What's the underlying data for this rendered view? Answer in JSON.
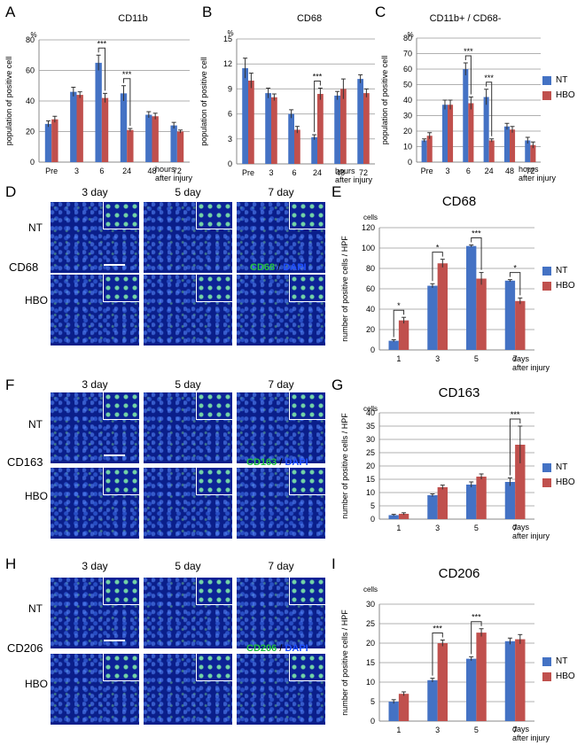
{
  "colors": {
    "nt": "#4472c4",
    "hbo": "#c0504d",
    "axis": "#888888",
    "grid": "#b0b0b0"
  },
  "legend": {
    "nt": "NT",
    "hbo": "HBO"
  },
  "panels": {
    "A": "A",
    "B": "B",
    "C": "C",
    "D": "D",
    "E": "E",
    "F": "F",
    "G": "G",
    "H": "H",
    "I": "I"
  },
  "micro": {
    "days": [
      "3 day",
      "5 day",
      "7 day"
    ],
    "nt": "NT",
    "hbo": "HBO",
    "dapi": "DAPI",
    "slash": "/",
    "D": {
      "marker": "CD68"
    },
    "F": {
      "marker": "CD163"
    },
    "H": {
      "marker": "CD206"
    }
  },
  "chart_data": [
    {
      "id": "A",
      "type": "bar",
      "title": "CD11b",
      "unit": "%",
      "ylabel": "population of positive cell",
      "xlabel": "hours after injury",
      "categories": [
        "Pre",
        "3",
        "6",
        "24",
        "48",
        "72"
      ],
      "ylim": [
        0,
        80
      ],
      "yticks": [
        0,
        20,
        40,
        60,
        80
      ],
      "grid": true,
      "series": [
        {
          "name": "NT",
          "values": [
            25,
            46,
            65,
            45,
            31,
            24
          ],
          "errors": [
            2,
            3,
            5,
            5,
            2,
            2
          ]
        },
        {
          "name": "HBO",
          "values": [
            28,
            44,
            42,
            21,
            30,
            20
          ],
          "errors": [
            2,
            2,
            3,
            1,
            2,
            1
          ]
        }
      ],
      "significance": [
        {
          "category": "6",
          "label": "***"
        },
        {
          "category": "24",
          "label": "***"
        }
      ]
    },
    {
      "id": "B",
      "type": "bar",
      "title": "CD68",
      "unit": "%",
      "ylabel": "population of positive cell",
      "xlabel": "hours after injury",
      "categories": [
        "Pre",
        "3",
        "6",
        "24",
        "48",
        "72"
      ],
      "ylim": [
        0,
        15
      ],
      "yticks": [
        0,
        3,
        6,
        9,
        12,
        15
      ],
      "grid": true,
      "series": [
        {
          "name": "NT",
          "values": [
            11.5,
            8.5,
            6,
            3.2,
            8.2,
            10.2
          ],
          "errors": [
            1.2,
            0.6,
            0.5,
            0.3,
            0.5,
            0.5
          ]
        },
        {
          "name": "HBO",
          "values": [
            10,
            8,
            4.1,
            8.4,
            9,
            8.5
          ],
          "errors": [
            0.9,
            0.4,
            0.4,
            0.7,
            1.2,
            0.5
          ]
        }
      ],
      "significance": [
        {
          "category": "24",
          "label": "***"
        }
      ]
    },
    {
      "id": "C",
      "type": "bar",
      "title": "CD11b+ / CD68-",
      "unit": "%",
      "ylabel": "population of positive cell",
      "xlabel": "hours after injury",
      "categories": [
        "Pre",
        "3",
        "6",
        "24",
        "48",
        "72"
      ],
      "ylim": [
        0,
        80
      ],
      "yticks": [
        0,
        10,
        20,
        30,
        40,
        50,
        60,
        70,
        80
      ],
      "grid": true,
      "series": [
        {
          "name": "NT",
          "values": [
            14,
            37,
            60,
            42,
            23,
            14
          ],
          "errors": [
            1,
            3,
            4,
            5,
            2,
            2
          ]
        },
        {
          "name": "HBO",
          "values": [
            17,
            37,
            38,
            14,
            21,
            11
          ],
          "errors": [
            2,
            3,
            4,
            1,
            2,
            2
          ]
        }
      ],
      "significance": [
        {
          "category": "6",
          "label": "***"
        },
        {
          "category": "24",
          "label": "***"
        }
      ],
      "legend_position": "right"
    },
    {
      "id": "E",
      "type": "bar",
      "title": "CD68",
      "unit": "cells",
      "ylabel": "number of positive cells / HPF",
      "xlabel": "days after injury",
      "categories": [
        "1",
        "3",
        "5",
        "7"
      ],
      "ylim": [
        0,
        120
      ],
      "yticks": [
        0,
        20,
        40,
        60,
        80,
        100,
        120
      ],
      "grid": true,
      "series": [
        {
          "name": "NT",
          "values": [
            9,
            63,
            102,
            68
          ],
          "errors": [
            1,
            2,
            1,
            1
          ]
        },
        {
          "name": "HBO",
          "values": [
            29,
            85,
            70,
            48
          ],
          "errors": [
            3,
            4,
            6,
            3
          ]
        }
      ],
      "significance": [
        {
          "category": "1",
          "label": "*"
        },
        {
          "category": "3",
          "label": "*"
        },
        {
          "category": "5",
          "label": "***"
        },
        {
          "category": "7",
          "label": "*"
        }
      ],
      "legend_position": "right"
    },
    {
      "id": "G",
      "type": "bar",
      "title": "CD163",
      "unit": "cells",
      "ylabel": "number of positive cells / HPF",
      "xlabel": "days after injury",
      "categories": [
        "1",
        "3",
        "5",
        "7"
      ],
      "ylim": [
        0,
        40
      ],
      "yticks": [
        0,
        5,
        10,
        15,
        20,
        25,
        30,
        35,
        40
      ],
      "grid": true,
      "series": [
        {
          "name": "NT",
          "values": [
            1.5,
            9,
            13,
            14
          ],
          "errors": [
            0.3,
            0.5,
            1,
            1.5
          ]
        },
        {
          "name": "HBO",
          "values": [
            2,
            12,
            16,
            28
          ],
          "errors": [
            0.4,
            0.8,
            1,
            7
          ]
        }
      ],
      "significance": [
        {
          "category": "7",
          "label": "***"
        }
      ],
      "legend_position": "right"
    },
    {
      "id": "I",
      "type": "bar",
      "title": "CD206",
      "unit": "cells",
      "ylabel": "number of positive cells / HPF",
      "xlabel": "days after injury",
      "categories": [
        "1",
        "3",
        "5",
        "7"
      ],
      "ylim": [
        0,
        30
      ],
      "yticks": [
        0,
        5,
        10,
        15,
        20,
        25,
        30
      ],
      "grid": true,
      "series": [
        {
          "name": "NT",
          "values": [
            5,
            10.5,
            16,
            20.5
          ],
          "errors": [
            0.5,
            0.5,
            0.5,
            0.8
          ]
        },
        {
          "name": "HBO",
          "values": [
            7,
            20,
            22.7,
            21
          ],
          "errors": [
            0.5,
            0.8,
            1,
            1.2
          ]
        }
      ],
      "significance": [
        {
          "category": "3",
          "label": "***"
        },
        {
          "category": "5",
          "label": "***"
        }
      ],
      "legend_position": "right"
    }
  ]
}
